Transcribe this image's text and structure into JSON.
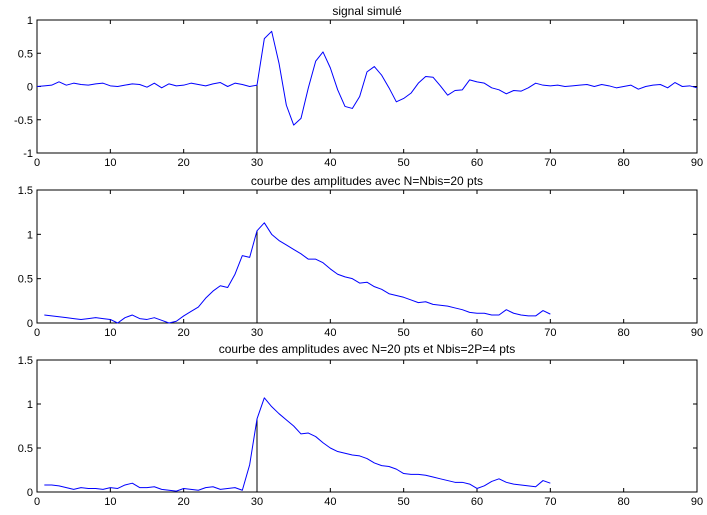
{
  "chart_data": [
    {
      "type": "line",
      "title": "signal simulé",
      "xlabel": "",
      "ylabel": "",
      "xlim": [
        0,
        90
      ],
      "ylim": [
        -1,
        1
      ],
      "xticks": [
        "0",
        "10",
        "20",
        "30",
        "40",
        "50",
        "60",
        "70",
        "80",
        "90"
      ],
      "yticks": [
        "-1",
        "-0.5",
        "0",
        "0.5",
        "1"
      ],
      "grid": false,
      "series_color": "#0000ff",
      "marker_color": "#000000",
      "marker_x": 30,
      "series": [
        {
          "x": [
            0,
            1,
            2,
            3,
            4,
            5,
            6,
            7,
            8,
            9,
            10,
            11,
            12,
            13,
            14,
            15,
            16,
            17,
            18,
            19,
            20,
            21,
            22,
            23,
            24,
            25,
            26,
            27,
            28,
            29,
            30,
            31,
            32,
            33,
            34,
            35,
            36,
            37,
            38,
            39,
            40,
            41,
            42,
            43,
            44,
            45,
            46,
            47,
            48,
            49,
            50,
            51,
            52,
            53,
            54,
            55,
            56,
            57,
            58,
            59,
            60,
            61,
            62,
            63,
            64,
            65,
            66,
            67,
            68,
            69,
            70,
            71,
            72,
            73,
            74,
            75,
            76,
            77,
            78,
            79,
            80,
            81,
            82,
            83,
            84,
            85,
            86,
            87,
            88,
            89,
            90
          ],
          "values": [
            0.0,
            0.01,
            0.02,
            0.07,
            0.02,
            0.05,
            0.03,
            0.02,
            0.04,
            0.05,
            0.01,
            0.0,
            0.02,
            0.04,
            0.03,
            -0.01,
            0.05,
            -0.02,
            0.04,
            0.01,
            0.02,
            0.05,
            0.03,
            0.01,
            0.04,
            0.06,
            0.0,
            0.05,
            0.03,
            0.0,
            0.02,
            0.72,
            0.83,
            0.35,
            -0.28,
            -0.58,
            -0.48,
            -0.02,
            0.38,
            0.52,
            0.28,
            -0.05,
            -0.3,
            -0.33,
            -0.15,
            0.22,
            0.3,
            0.17,
            -0.02,
            -0.23,
            -0.18,
            -0.1,
            0.05,
            0.15,
            0.14,
            0.01,
            -0.13,
            -0.06,
            -0.05,
            0.1,
            0.07,
            0.05,
            -0.02,
            -0.05,
            -0.11,
            -0.06,
            -0.07,
            -0.02,
            0.05,
            0.02,
            0.01,
            0.02,
            0.0,
            0.01,
            0.02,
            0.03,
            0.0,
            0.03,
            0.01,
            -0.02,
            0.0,
            0.02,
            -0.04,
            0.0,
            0.02,
            0.03,
            -0.02,
            0.06,
            0.0,
            0.01,
            -0.02
          ]
        }
      ]
    },
    {
      "type": "line",
      "title": "courbe des amplitudes avec N=Nbis=20 pts",
      "xlabel": "",
      "ylabel": "",
      "xlim": [
        0,
        90
      ],
      "ylim": [
        0,
        1.5
      ],
      "xticks": [
        "0",
        "10",
        "20",
        "30",
        "40",
        "50",
        "60",
        "70",
        "80",
        "90"
      ],
      "yticks": [
        "0",
        "0.5",
        "1",
        "1.5"
      ],
      "grid": false,
      "series_color": "#0000ff",
      "marker_color": "#000000",
      "marker_x": 30,
      "series": [
        {
          "x": [
            1,
            2,
            3,
            4,
            5,
            6,
            7,
            8,
            9,
            10,
            11,
            12,
            13,
            14,
            15,
            16,
            17,
            18,
            19,
            20,
            21,
            22,
            23,
            24,
            25,
            26,
            27,
            28,
            29,
            30,
            31,
            32,
            33,
            34,
            35,
            36,
            37,
            38,
            39,
            40,
            41,
            42,
            43,
            44,
            45,
            46,
            47,
            48,
            49,
            50,
            51,
            52,
            53,
            54,
            55,
            56,
            57,
            58,
            59,
            60,
            61,
            62,
            63,
            64,
            65,
            66,
            67,
            68,
            69,
            70
          ],
          "values": [
            0.09,
            0.08,
            0.07,
            0.06,
            0.05,
            0.04,
            0.05,
            0.06,
            0.05,
            0.04,
            0.0,
            0.06,
            0.09,
            0.05,
            0.04,
            0.06,
            0.03,
            0.0,
            0.02,
            0.08,
            0.13,
            0.18,
            0.28,
            0.36,
            0.42,
            0.4,
            0.55,
            0.76,
            0.74,
            1.04,
            1.13,
            1.0,
            0.93,
            0.88,
            0.83,
            0.78,
            0.72,
            0.72,
            0.68,
            0.61,
            0.55,
            0.52,
            0.5,
            0.45,
            0.46,
            0.41,
            0.38,
            0.33,
            0.31,
            0.29,
            0.26,
            0.23,
            0.24,
            0.21,
            0.2,
            0.19,
            0.17,
            0.15,
            0.12,
            0.11,
            0.11,
            0.09,
            0.09,
            0.15,
            0.11,
            0.09,
            0.08,
            0.08,
            0.14,
            0.1
          ]
        }
      ]
    },
    {
      "type": "line",
      "title": "courbe des amplitudes avec N=20 pts et Nbis=2P=4 pts",
      "xlabel": "",
      "ylabel": "",
      "xlim": [
        0,
        90
      ],
      "ylim": [
        0,
        1.5
      ],
      "xticks": [
        "0",
        "10",
        "20",
        "30",
        "40",
        "50",
        "60",
        "70",
        "80",
        "90"
      ],
      "yticks": [
        "0",
        "0.5",
        "1",
        "1.5"
      ],
      "grid": false,
      "series_color": "#0000ff",
      "marker_color": "#000000",
      "marker_x": 30,
      "series": [
        {
          "x": [
            1,
            2,
            3,
            4,
            5,
            6,
            7,
            8,
            9,
            10,
            11,
            12,
            13,
            14,
            15,
            16,
            17,
            18,
            19,
            20,
            21,
            22,
            23,
            24,
            25,
            26,
            27,
            28,
            29,
            30,
            31,
            32,
            33,
            34,
            35,
            36,
            37,
            38,
            39,
            40,
            41,
            42,
            43,
            44,
            45,
            46,
            47,
            48,
            49,
            50,
            51,
            52,
            53,
            54,
            55,
            56,
            57,
            58,
            59,
            60,
            61,
            62,
            63,
            64,
            65,
            66,
            67,
            68,
            69,
            70
          ],
          "values": [
            0.08,
            0.08,
            0.07,
            0.05,
            0.03,
            0.05,
            0.04,
            0.04,
            0.03,
            0.05,
            0.04,
            0.08,
            0.1,
            0.05,
            0.05,
            0.06,
            0.03,
            0.02,
            0.01,
            0.04,
            0.03,
            0.02,
            0.05,
            0.06,
            0.03,
            0.04,
            0.05,
            0.02,
            0.31,
            0.83,
            1.07,
            0.97,
            0.89,
            0.82,
            0.75,
            0.66,
            0.67,
            0.63,
            0.56,
            0.5,
            0.46,
            0.44,
            0.42,
            0.41,
            0.38,
            0.33,
            0.3,
            0.29,
            0.26,
            0.21,
            0.2,
            0.2,
            0.19,
            0.17,
            0.15,
            0.13,
            0.11,
            0.11,
            0.09,
            0.04,
            0.07,
            0.12,
            0.15,
            0.11,
            0.09,
            0.08,
            0.07,
            0.06,
            0.13,
            0.1
          ]
        }
      ]
    }
  ]
}
